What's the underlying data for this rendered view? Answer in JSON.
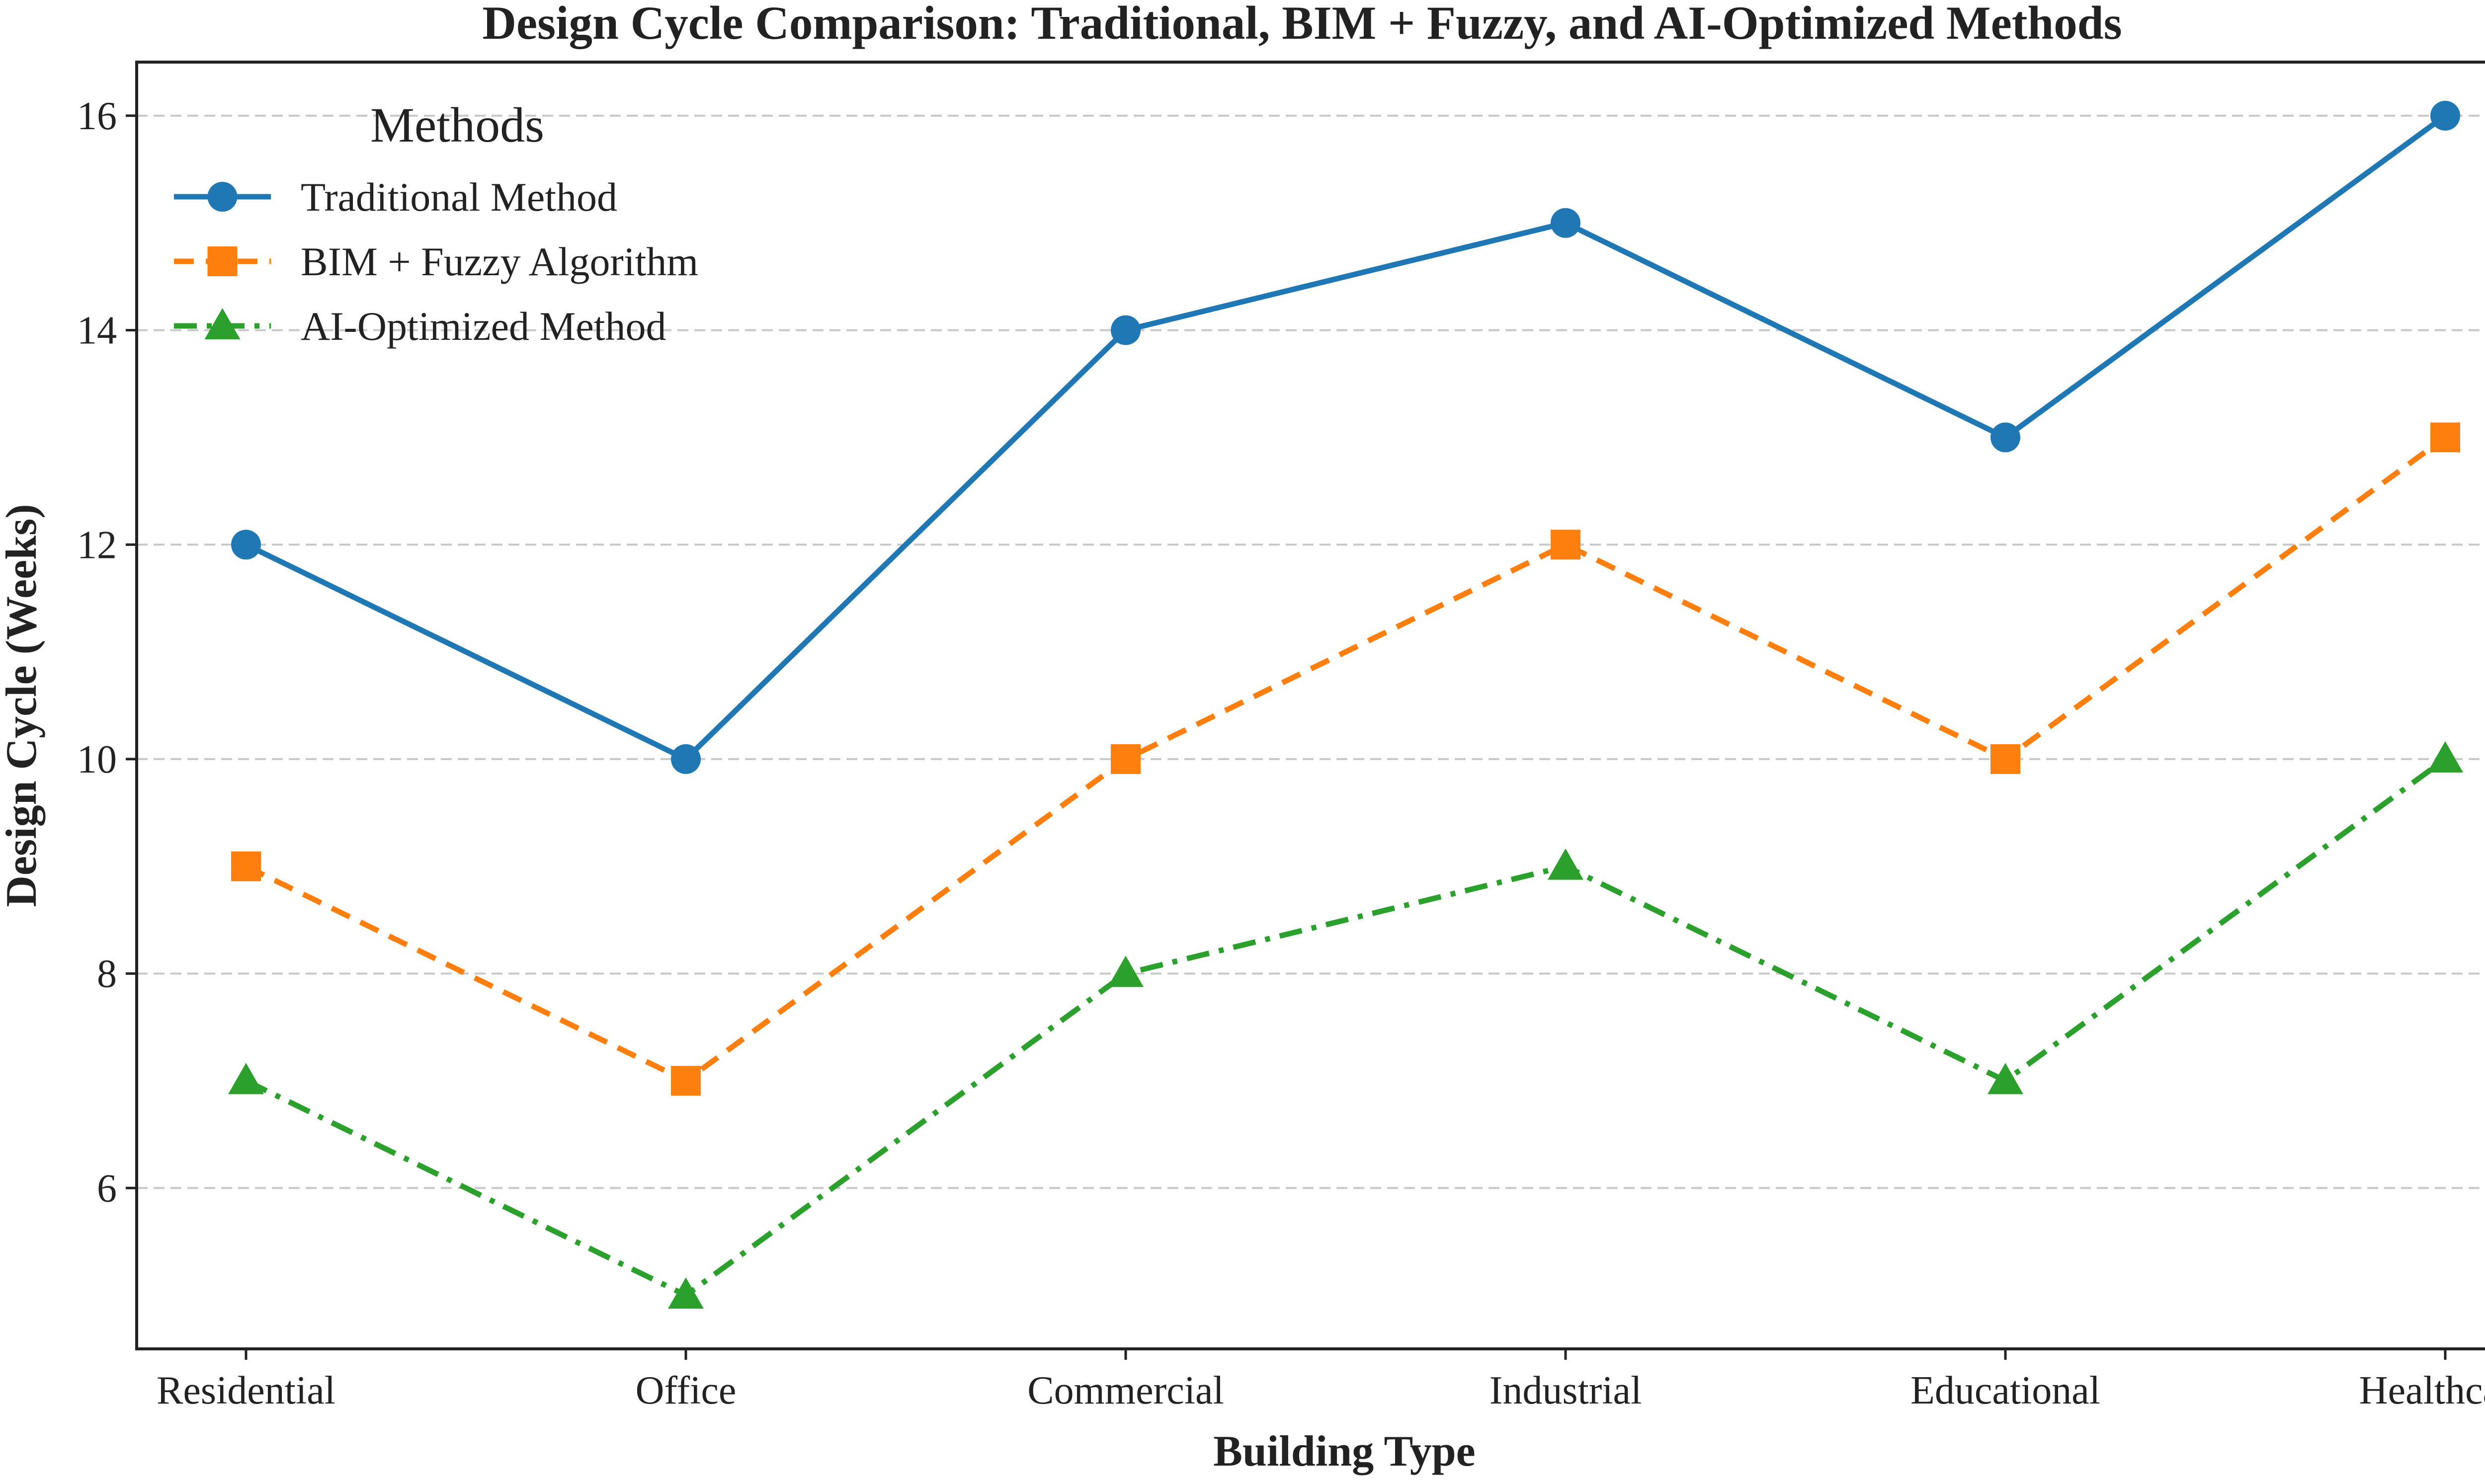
{
  "chart_data": {
    "type": "line",
    "title": "Design Cycle Comparison: Traditional, BIM + Fuzzy, and AI-Optimized Methods",
    "xlabel": "Building Type",
    "ylabel": "Design Cycle (Weeks)",
    "categories": [
      "Residential",
      "Office",
      "Commercial",
      "Industrial",
      "Educational",
      "Healthcare"
    ],
    "ylim": [
      4.5,
      16.5
    ],
    "yticks": [
      6,
      8,
      10,
      12,
      14,
      16
    ],
    "grid": "y-dashed",
    "legend": {
      "title": "Methods",
      "placement": "top-left"
    },
    "series": [
      {
        "name": "Traditional Method",
        "values": [
          12,
          10,
          14,
          15,
          13,
          16
        ],
        "color": "#1f77b4",
        "marker": "circle",
        "linestyle": "solid"
      },
      {
        "name": "BIM + Fuzzy Algorithm",
        "values": [
          9,
          7,
          10,
          12,
          10,
          13
        ],
        "color": "#ff7f0e",
        "marker": "square",
        "linestyle": "dashed"
      },
      {
        "name": "AI-Optimized Method",
        "values": [
          7,
          5,
          8,
          9,
          7,
          10
        ],
        "color": "#2ca02c",
        "marker": "triangle",
        "linestyle": "dashdot"
      }
    ]
  }
}
